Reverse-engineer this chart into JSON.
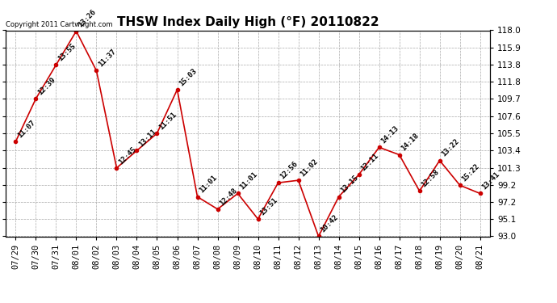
{
  "title": "THSW Index Daily High (°F) 20110822",
  "copyright": "Copyright 2011 Cartwright.com",
  "x_labels": [
    "07/29",
    "07/30",
    "07/31",
    "08/01",
    "08/02",
    "08/03",
    "08/04",
    "08/05",
    "08/06",
    "08/07",
    "08/08",
    "08/09",
    "08/10",
    "08/11",
    "08/12",
    "08/13",
    "08/14",
    "08/15",
    "08/16",
    "08/17",
    "08/18",
    "08/19",
    "08/20",
    "08/21"
  ],
  "y_values": [
    104.5,
    109.7,
    113.8,
    117.9,
    113.1,
    101.3,
    103.4,
    105.5,
    110.8,
    97.8,
    96.3,
    98.2,
    95.1,
    99.5,
    99.8,
    93.0,
    97.8,
    100.5,
    103.8,
    102.9,
    98.5,
    102.2,
    99.2,
    98.2
  ],
  "point_labels": [
    "11:07",
    "12:39",
    "13:55",
    "13:26",
    "11:37",
    "12:45",
    "13:11",
    "11:51",
    "15:03",
    "11:01",
    "12:48",
    "11:01",
    "13:51",
    "12:56",
    "11:02",
    "10:42",
    "13:15",
    "12:11",
    "14:13",
    "14:18",
    "12:58",
    "13:22",
    "15:22",
    "13:41"
  ],
  "line_color": "#cc0000",
  "marker_color": "#cc0000",
  "bg_color": "#ffffff",
  "grid_color": "#aaaaaa",
  "ylim_min": 93.0,
  "ylim_max": 118.0,
  "yticks": [
    93.0,
    95.1,
    97.2,
    99.2,
    101.3,
    103.4,
    105.5,
    107.6,
    109.7,
    111.8,
    113.8,
    115.9,
    118.0
  ],
  "title_fontsize": 11,
  "label_fontsize": 6.5,
  "tick_fontsize": 7.5,
  "copyright_fontsize": 6
}
